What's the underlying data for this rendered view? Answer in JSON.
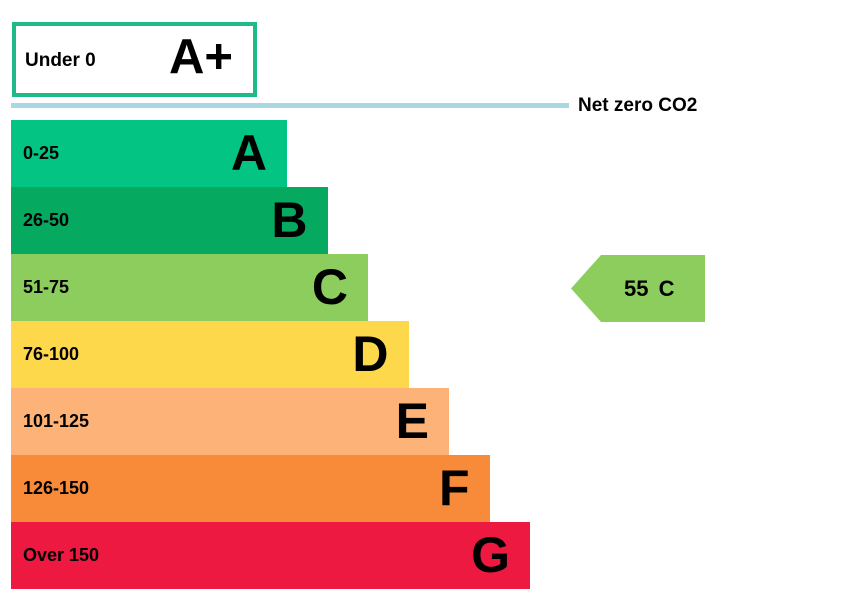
{
  "chart_data": {
    "type": "bar",
    "title": "",
    "top_band": {
      "range": "Under 0",
      "letter": "A+",
      "color": "#1fb98a"
    },
    "reference_line": {
      "label": "Net zero CO2",
      "color": "#a9d8e4"
    },
    "categories": [
      "0-25",
      "26-50",
      "51-75",
      "76-100",
      "101-125",
      "126-150",
      "Over 150"
    ],
    "letters": [
      "A",
      "B",
      "C",
      "D",
      "E",
      "F",
      "G"
    ],
    "values": [
      1,
      2,
      3,
      4,
      5,
      6,
      7
    ],
    "colors": [
      "#04c484",
      "#05a960",
      "#8ccd5e",
      "#fed84b",
      "#fdb377",
      "#f88b39",
      "#ed1940"
    ],
    "current_rating": {
      "value": "55",
      "letter": "C",
      "band": "C",
      "color": "#8ccd5e"
    }
  }
}
